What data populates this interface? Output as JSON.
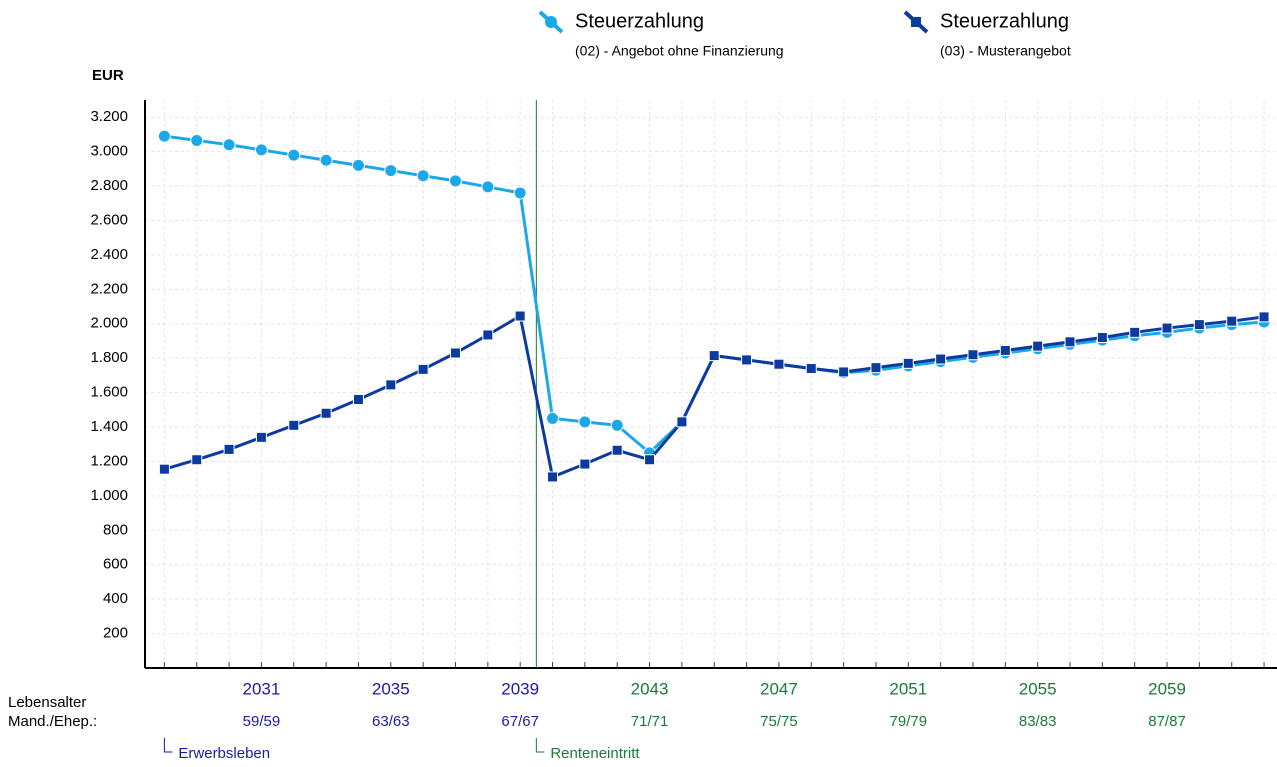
{
  "chart_data": {
    "type": "line",
    "y_label": "EUR",
    "x": [
      2028,
      2029,
      2030,
      2031,
      2032,
      2033,
      2034,
      2035,
      2036,
      2037,
      2038,
      2039,
      2040,
      2041,
      2042,
      2043,
      2044,
      2045,
      2046,
      2047,
      2048,
      2049,
      2050,
      2051,
      2052,
      2053,
      2054,
      2055,
      2056,
      2057,
      2058,
      2059,
      2060,
      2061,
      2062
    ],
    "xlim": [
      2027.4,
      2062.4
    ],
    "xticks": [
      2031,
      2035,
      2039,
      2043,
      2047,
      2051,
      2055,
      2059
    ],
    "age_labels": [
      "59/59",
      "63/63",
      "67/67",
      "71/71",
      "75/75",
      "79/79",
      "83/83",
      "87/87"
    ],
    "row_labels": [
      "Lebensalter",
      "Mand./Ehep.:"
    ],
    "ylim": [
      0,
      3300
    ],
    "yticks": [
      200,
      400,
      600,
      800,
      {
        "value": 1000,
        "label": "1.000"
      },
      {
        "value": 1200,
        "label": "1.200"
      },
      {
        "value": 1400,
        "label": "1.400"
      },
      {
        "value": 1600,
        "label": "1.600"
      },
      {
        "value": 1800,
        "label": "1.800"
      },
      {
        "value": 2000,
        "label": "2.000"
      },
      {
        "value": 2200,
        "label": "2.200"
      },
      {
        "value": 2400,
        "label": "2.400"
      },
      {
        "value": 2600,
        "label": "2.600"
      },
      {
        "value": 2800,
        "label": "2.800"
      },
      {
        "value": 3000,
        "label": "3.000"
      },
      {
        "value": 3200,
        "label": "3.200"
      }
    ],
    "grid": true,
    "retirement_x": 2039.5,
    "phase_colors": [
      "#1a1aa8",
      "#1a7a3c"
    ],
    "annotations": [
      "Erwerbsleben",
      "Renteneintritt"
    ],
    "series": [
      {
        "name": "Steuerzahlung",
        "subtitle": "(02) - Angebot ohne Finanzierung",
        "color": "#1ba8e8",
        "marker": "circle",
        "values": [
          3090,
          3065,
          3040,
          3010,
          2980,
          2950,
          2920,
          2890,
          2860,
          2830,
          2795,
          2760,
          1450,
          1430,
          1410,
          1250,
          1430,
          1815,
          1790,
          1765,
          1740,
          1715,
          1730,
          1755,
          1780,
          1805,
          1830,
          1855,
          1880,
          1905,
          1930,
          1950,
          1975,
          1995,
          2010
        ]
      },
      {
        "name": "Steuerzahlung",
        "subtitle": "(03) - Musterangebot",
        "color": "#0d3a9e",
        "marker": "square",
        "values": [
          1155,
          1210,
          1270,
          1340,
          1410,
          1480,
          1560,
          1645,
          1735,
          1830,
          1935,
          2045,
          1110,
          1185,
          1265,
          1210,
          1430,
          1815,
          1790,
          1765,
          1740,
          1720,
          1745,
          1770,
          1795,
          1820,
          1845,
          1870,
          1895,
          1920,
          1950,
          1975,
          1995,
          2015,
          2040
        ]
      }
    ]
  }
}
